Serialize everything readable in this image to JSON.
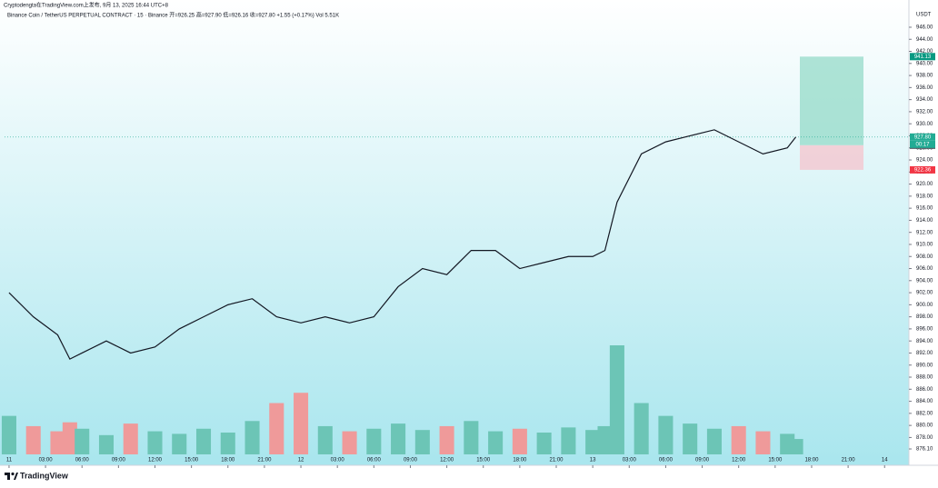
{
  "header": {
    "published": "Cryptodengta在TradingView.com上发布, 9月 13, 2025 16:44 UTC+8",
    "symbol_line": "Binance Coin / TetherUS PERPETUAL CONTRACT · 15 · Binance  开=926.25  高=927.90  低=926.16  收=927.80  +1.55 (+0.17%)  Vol 5.51K"
  },
  "chart_data": {
    "type": "line",
    "axis_unit": "USDT",
    "x": [
      0,
      2,
      4,
      5,
      6,
      8,
      10,
      12,
      14,
      16,
      18,
      20,
      22,
      24,
      26,
      28,
      30,
      32,
      34,
      36,
      38,
      40,
      42,
      44,
      46,
      48,
      49,
      50,
      52,
      54,
      56,
      58,
      60,
      62,
      64,
      64.7
    ],
    "series": [
      {
        "color": "#131722",
        "values": [
          902,
          898,
          895,
          891,
          892,
          894,
          892,
          893,
          896,
          898,
          900,
          901,
          898,
          897,
          898,
          897,
          898,
          903,
          906,
          905,
          909,
          909,
          906,
          907,
          908,
          908,
          909,
          917,
          925,
          927,
          928,
          929,
          927,
          925,
          926,
          927.8
        ]
      }
    ],
    "volume": [
      30,
      22,
      18,
      25,
      20,
      15,
      24,
      18,
      16,
      20,
      17,
      26,
      40,
      48,
      22,
      18,
      20,
      24,
      19,
      22,
      26,
      18,
      20,
      17,
      21,
      19,
      22,
      85,
      40,
      30,
      24,
      20,
      22,
      18,
      16,
      12
    ],
    "xlim": [
      -0.37,
      74
    ],
    "xticks": [
      {
        "value": 0,
        "label": "11"
      },
      {
        "value": 3,
        "label": "03:00"
      },
      {
        "value": 6,
        "label": "06:00"
      },
      {
        "value": 9,
        "label": "09:00"
      },
      {
        "value": 12,
        "label": "12:00"
      },
      {
        "value": 15,
        "label": "15:00"
      },
      {
        "value": 18,
        "label": "18:00"
      },
      {
        "value": 21,
        "label": "21:00"
      },
      {
        "value": 24,
        "label": "12"
      },
      {
        "value": 27,
        "label": "03:00"
      },
      {
        "value": 30,
        "label": "06:00"
      },
      {
        "value": 33,
        "label": "09:00"
      },
      {
        "value": 36,
        "label": "12:00"
      },
      {
        "value": 39,
        "label": "15:00"
      },
      {
        "value": 42,
        "label": "18:00"
      },
      {
        "value": 45,
        "label": "21:00"
      },
      {
        "value": 48,
        "label": "13"
      },
      {
        "value": 51,
        "label": "03:00"
      },
      {
        "value": 54,
        "label": "06:00"
      },
      {
        "value": 57,
        "label": "09:00"
      },
      {
        "value": 60,
        "label": "12:00"
      },
      {
        "value": 63,
        "label": "15:00"
      },
      {
        "value": 66,
        "label": "18:00"
      },
      {
        "value": 69,
        "label": "21:00"
      },
      {
        "value": 72,
        "label": "14"
      }
    ],
    "ylim": [
      875.2,
      947.2
    ],
    "yticks": [
      {
        "value": 876.1,
        "label": "876.10"
      },
      {
        "value": 878,
        "label": "878.00"
      },
      {
        "value": 880,
        "label": "880.00"
      },
      {
        "value": 882,
        "label": "882.00"
      },
      {
        "value": 884,
        "label": "884.00"
      },
      {
        "value": 886,
        "label": "886.00"
      },
      {
        "value": 888,
        "label": "888.00"
      },
      {
        "value": 890,
        "label": "890.00"
      },
      {
        "value": 892,
        "label": "892.00"
      },
      {
        "value": 894,
        "label": "894.00"
      },
      {
        "value": 896,
        "label": "896.00"
      },
      {
        "value": 898,
        "label": "898.00"
      },
      {
        "value": 900,
        "label": "900.00"
      },
      {
        "value": 902,
        "label": "902.00"
      },
      {
        "value": 904,
        "label": "904.00"
      },
      {
        "value": 906,
        "label": "906.00"
      },
      {
        "value": 908,
        "label": "908.00"
      },
      {
        "value": 910,
        "label": "910.00"
      },
      {
        "value": 912,
        "label": "912.00"
      },
      {
        "value": 914,
        "label": "914.00"
      },
      {
        "value": 916,
        "label": "916.00"
      },
      {
        "value": 918,
        "label": "918.00"
      },
      {
        "value": 920,
        "label": "920.00"
      },
      {
        "value": 922,
        "label": "922.00"
      },
      {
        "value": 924,
        "label": "924.00"
      },
      {
        "value": 926,
        "label": "926.00"
      },
      {
        "value": 928,
        "label": "928.00"
      },
      {
        "value": 930,
        "label": "930.00"
      },
      {
        "value": 932,
        "label": "932.00"
      },
      {
        "value": 934,
        "label": "934.00"
      },
      {
        "value": 936,
        "label": "936.00"
      },
      {
        "value": 938,
        "label": "938.00"
      },
      {
        "value": 940,
        "label": "940.00"
      },
      {
        "value": 942,
        "label": "942.00"
      },
      {
        "value": 944,
        "label": "944.00"
      },
      {
        "value": 946,
        "label": "946.00"
      }
    ],
    "price_labels": [
      {
        "value": 941.13,
        "color": "#089981"
      },
      {
        "value": 927.8,
        "label": "927.80",
        "color": "#22ab94"
      },
      {
        "value": 926.44,
        "color": "#50535e"
      },
      {
        "value": 922.36,
        "color": "#f23645"
      }
    ],
    "countdown": "00:17"
  },
  "footer": {
    "brand": "TradingView"
  }
}
